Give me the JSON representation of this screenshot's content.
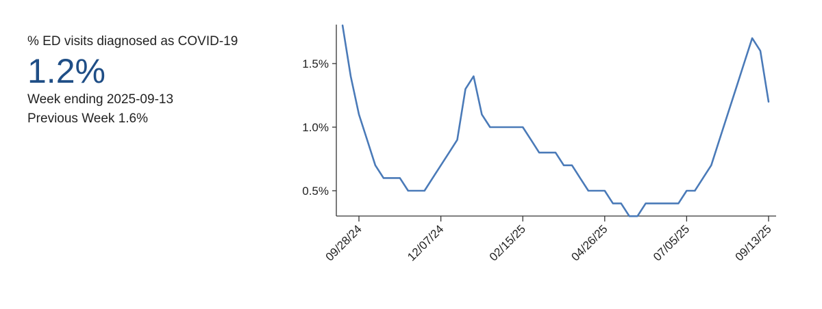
{
  "summary": {
    "label": "% ED visits diagnosed as COVID-19",
    "value": "1.2%",
    "week_ending": "Week ending 2025-09-13",
    "previous_week": "Previous Week 1.6%"
  },
  "colors": {
    "line": "#4a7ab8",
    "value_text": "#1f4e86",
    "axis": "#333333"
  },
  "chart_data": {
    "type": "line",
    "title": "",
    "xlabel": "",
    "ylabel": "",
    "ylim": [
      0.3,
      1.8
    ],
    "y_ticks": [
      0.5,
      1.0,
      1.5
    ],
    "y_tick_labels": [
      "0.5%",
      "1.0%",
      "1.5%"
    ],
    "x_tick_labels": [
      "09/28/24",
      "12/07/24",
      "02/15/25",
      "04/26/25",
      "07/05/25",
      "09/13/25"
    ],
    "x_ticks": [
      "2024-09-28",
      "2024-12-07",
      "2025-02-15",
      "2025-04-26",
      "2025-07-05",
      "2025-09-13"
    ],
    "grid": false,
    "series": [
      {
        "x": [
          "2024-09-14",
          "2024-09-21",
          "2024-09-28",
          "2024-10-05",
          "2024-10-12",
          "2024-10-19",
          "2024-10-26",
          "2024-11-02",
          "2024-11-09",
          "2024-11-16",
          "2024-11-23",
          "2024-11-30",
          "2024-12-07",
          "2024-12-14",
          "2024-12-21",
          "2024-12-28",
          "2025-01-04",
          "2025-01-11",
          "2025-01-18",
          "2025-01-25",
          "2025-02-01",
          "2025-02-08",
          "2025-02-15",
          "2025-02-22",
          "2025-03-01",
          "2025-03-08",
          "2025-03-15",
          "2025-03-22",
          "2025-03-29",
          "2025-04-05",
          "2025-04-12",
          "2025-04-19",
          "2025-04-26",
          "2025-05-03",
          "2025-05-10",
          "2025-05-17",
          "2025-05-24",
          "2025-05-31",
          "2025-06-07",
          "2025-06-14",
          "2025-06-21",
          "2025-06-28",
          "2025-07-05",
          "2025-07-12",
          "2025-07-19",
          "2025-07-26",
          "2025-08-02",
          "2025-08-09",
          "2025-08-16",
          "2025-08-23",
          "2025-08-30",
          "2025-09-06",
          "2025-09-13"
        ],
        "values": [
          1.8,
          1.4,
          1.1,
          0.9,
          0.7,
          0.6,
          0.6,
          0.6,
          0.5,
          0.5,
          0.5,
          0.6,
          0.7,
          0.8,
          0.9,
          1.3,
          1.4,
          1.1,
          1.0,
          1.0,
          1.0,
          1.0,
          1.0,
          0.9,
          0.8,
          0.8,
          0.8,
          0.7,
          0.7,
          0.6,
          0.5,
          0.5,
          0.5,
          0.4,
          0.4,
          0.3,
          0.3,
          0.4,
          0.4,
          0.4,
          0.4,
          0.4,
          0.5,
          0.5,
          0.6,
          0.7,
          0.9,
          1.1,
          1.3,
          1.5,
          1.7,
          1.6,
          1.2
        ]
      }
    ]
  }
}
